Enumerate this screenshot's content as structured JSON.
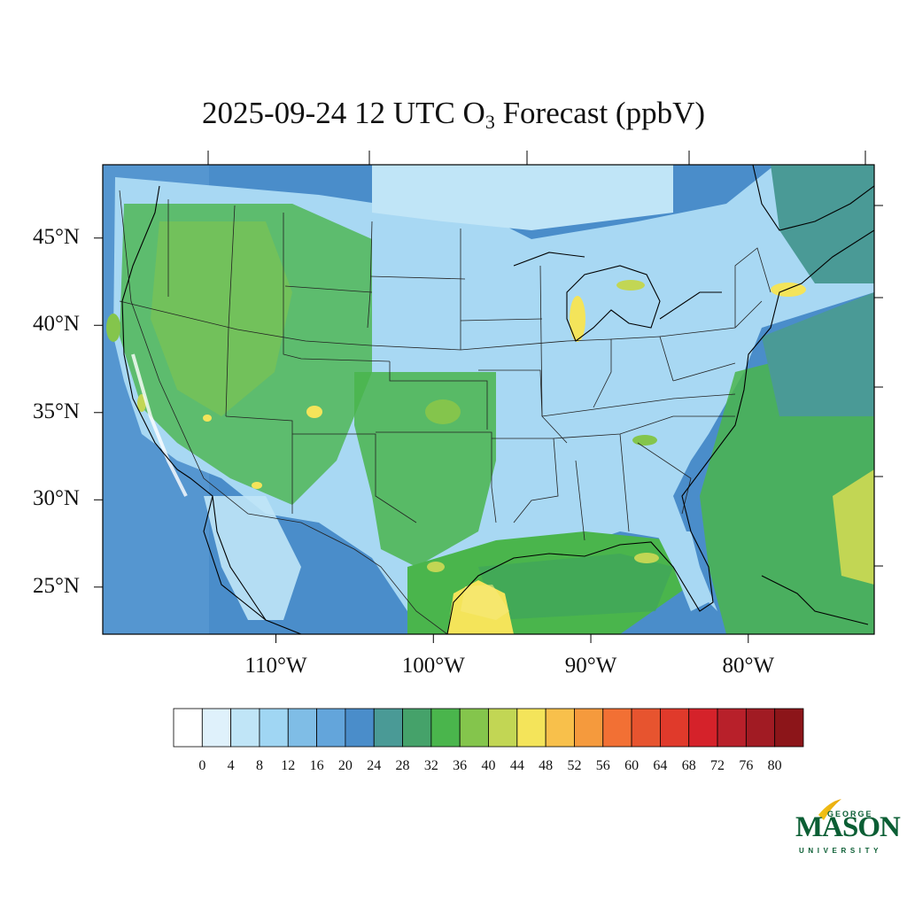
{
  "title": {
    "prefix": "2025-09-24 12 UTC O",
    "subscript": "3",
    "suffix": " Forecast (ppbV)"
  },
  "map": {
    "lon_range": [
      -121,
      -72
    ],
    "lat_range": [
      22.3,
      49.2
    ],
    "lat_ticks": [
      {
        "value": 45,
        "label": "45°N"
      },
      {
        "value": 40,
        "label": "40°N"
      },
      {
        "value": 35,
        "label": "35°N"
      },
      {
        "value": 30,
        "label": "30°N"
      },
      {
        "value": 25,
        "label": "25°N"
      }
    ],
    "lon_ticks": [
      {
        "value": -110,
        "label": "110°W"
      },
      {
        "value": -100,
        "label": "100°W"
      },
      {
        "value": -90,
        "label": "90°W"
      },
      {
        "value": -80,
        "label": "80°W"
      }
    ]
  },
  "colorbar": {
    "labels": [
      "0",
      "4",
      "8",
      "12",
      "16",
      "20",
      "24",
      "28",
      "32",
      "36",
      "40",
      "44",
      "48",
      "52",
      "56",
      "60",
      "64",
      "68",
      "72",
      "76",
      "80"
    ],
    "colors": [
      "#ffffff",
      "#dff1fb",
      "#c0e5f7",
      "#a0d6f3",
      "#7fbde6",
      "#63a5db",
      "#4a8dca",
      "#4a9a96",
      "#45a26a",
      "#4ab54c",
      "#84c54c",
      "#c2d654",
      "#f4e45a",
      "#f8c04b",
      "#f59a3d",
      "#f27034",
      "#e7542f",
      "#e03a2b",
      "#d5222a",
      "#b8202a",
      "#a11b23",
      "#8c1519"
    ]
  },
  "logo": {
    "george": "GEORGE",
    "mason": "MASON",
    "university": "UNIVERSITY"
  }
}
